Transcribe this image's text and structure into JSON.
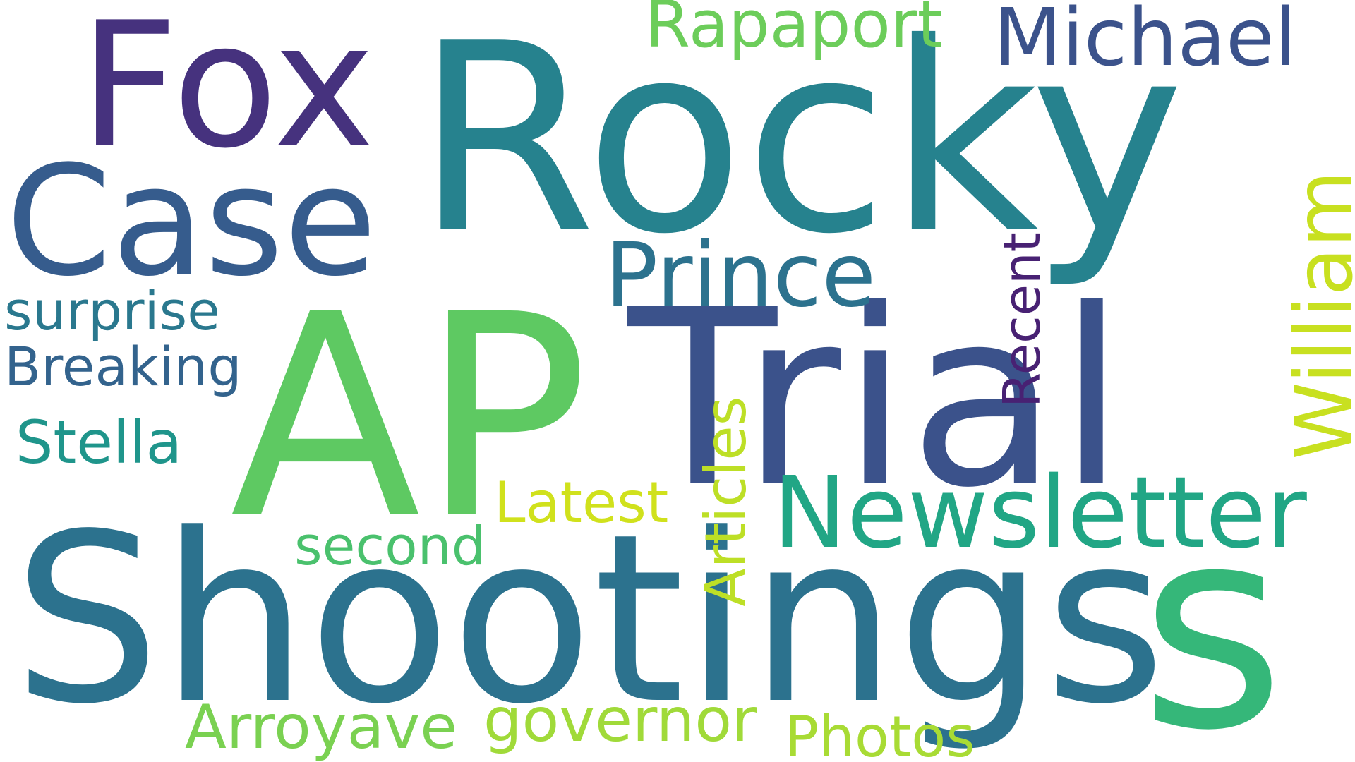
{
  "words": [
    {
      "text": "Rocky",
      "color": "#26828e",
      "rotated": false
    },
    {
      "text": "AP",
      "color": "#5ec962",
      "rotated": false
    },
    {
      "text": "Trial",
      "color": "#3b528b",
      "rotated": false
    },
    {
      "text": "Shootings",
      "color": "#2c728e",
      "rotated": false
    },
    {
      "text": "s",
      "color": "#35b779",
      "rotated": false
    },
    {
      "text": "Fox",
      "color": "#46327e",
      "rotated": false
    },
    {
      "text": "Case",
      "color": "#365c8d",
      "rotated": false
    },
    {
      "text": "Newsletter",
      "color": "#21a685",
      "rotated": false
    },
    {
      "text": "Prince",
      "color": "#2c728e",
      "rotated": false
    },
    {
      "text": "Michael",
      "color": "#3b528b",
      "rotated": false
    },
    {
      "text": "Rapaport",
      "color": "#6ccd5a",
      "rotated": false
    },
    {
      "text": "William",
      "color": "#c8e020",
      "rotated": true
    },
    {
      "text": "Recent",
      "color": "#482173",
      "rotated": true
    },
    {
      "text": "Articles",
      "color": "#bddf26",
      "rotated": true
    },
    {
      "text": "surprise",
      "color": "#2a788e",
      "rotated": false
    },
    {
      "text": "Breaking",
      "color": "#33638d",
      "rotated": false
    },
    {
      "text": "Stella",
      "color": "#1f958b",
      "rotated": false
    },
    {
      "text": "Latest",
      "color": "#d0e11c",
      "rotated": false
    },
    {
      "text": "second",
      "color": "#4ac16d",
      "rotated": false
    },
    {
      "text": "governor",
      "color": "#a0da39",
      "rotated": false
    },
    {
      "text": "Arroyave",
      "color": "#7ad151",
      "rotated": false
    },
    {
      "text": "Photos",
      "color": "#a8db34",
      "rotated": false
    }
  ]
}
